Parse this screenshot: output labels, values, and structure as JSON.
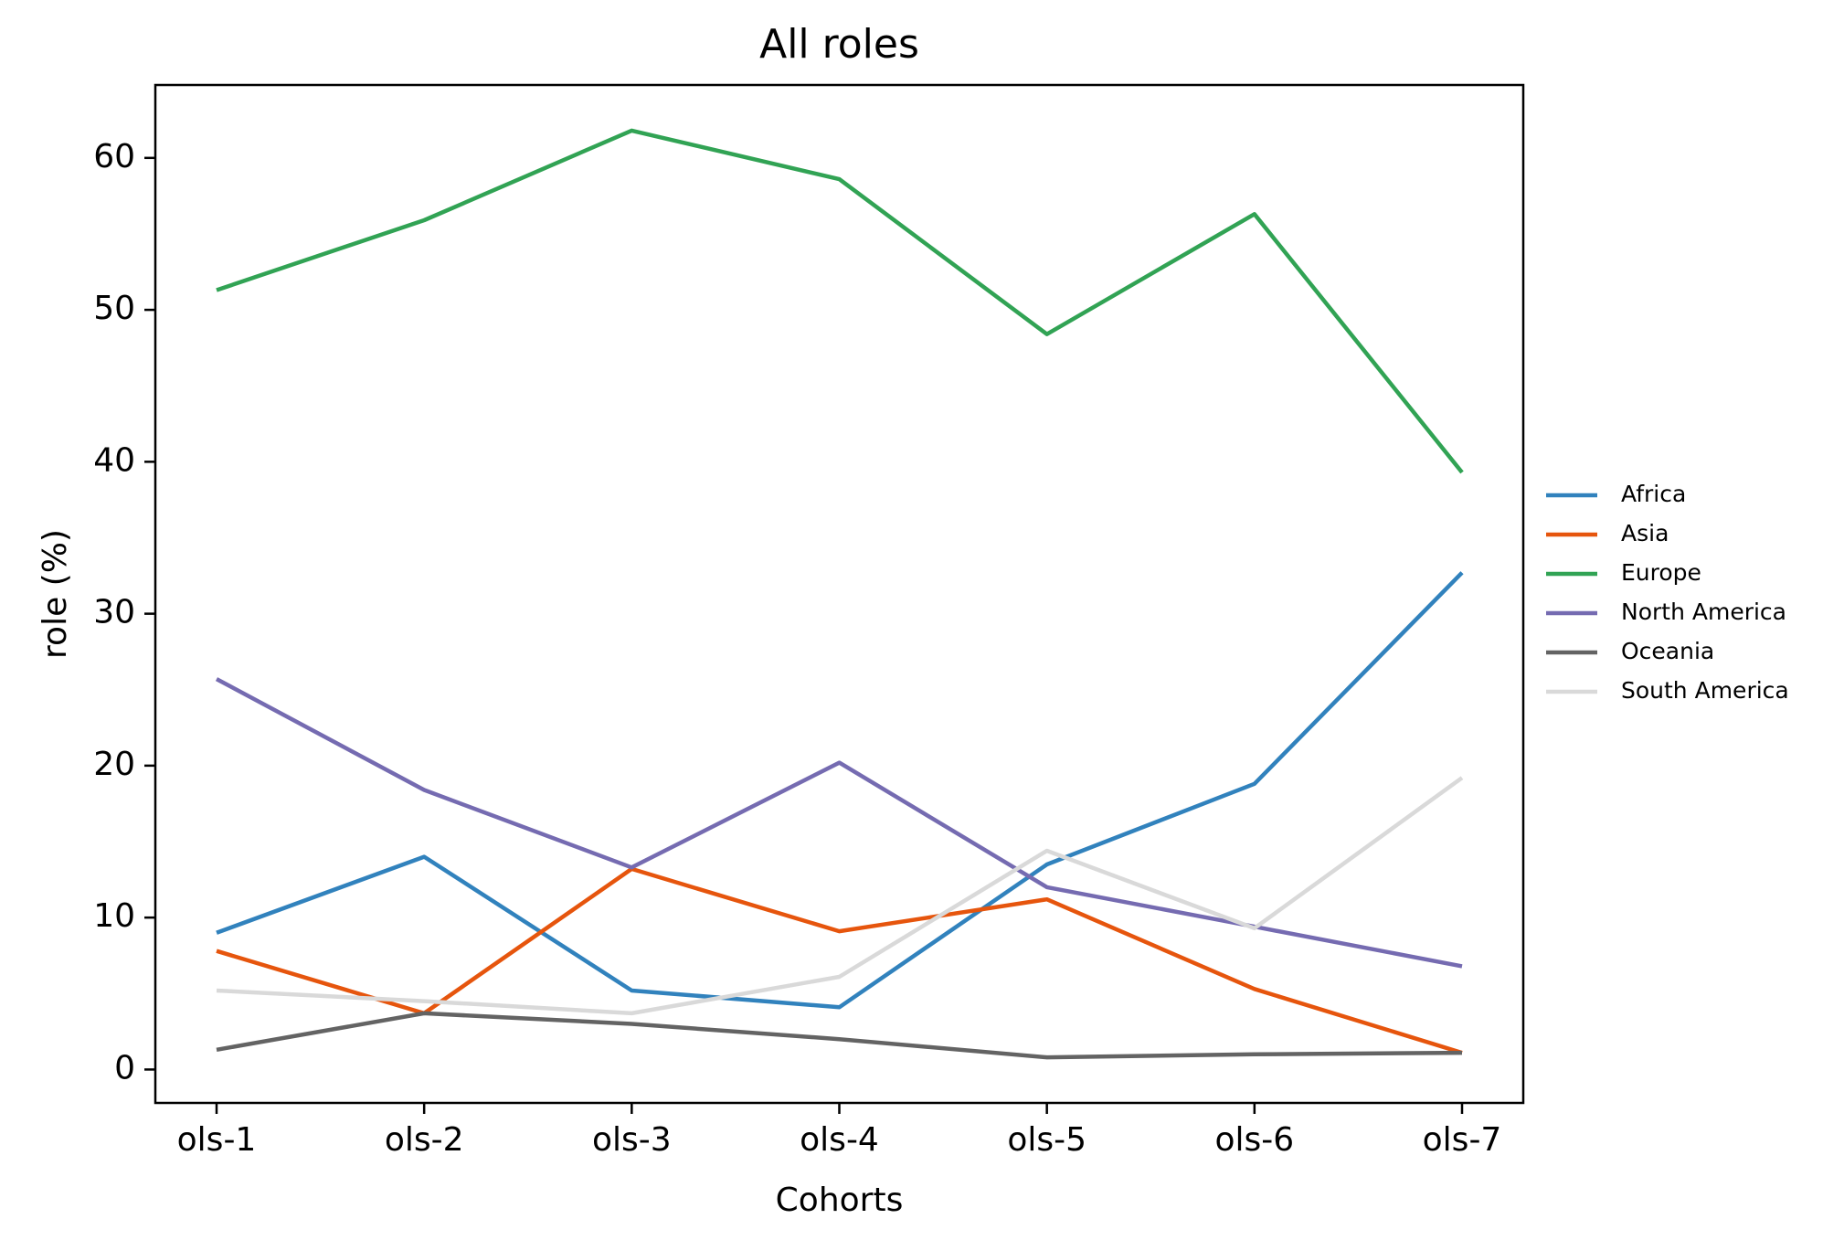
{
  "chart_data": {
    "type": "line",
    "title": "All roles",
    "xlabel": "Cohorts",
    "ylabel": "role (%)",
    "categories": [
      "ols-1",
      "ols-2",
      "ols-3",
      "ols-4",
      "ols-5",
      "ols-6",
      "ols-7"
    ],
    "ylim": [
      -2.2,
      64.8
    ],
    "yticks": [
      0,
      10,
      20,
      30,
      40,
      50,
      60
    ],
    "grid": false,
    "legend_position": "center-right-outside",
    "series": [
      {
        "name": "Africa",
        "color": "#3182bd",
        "values": [
          9.0,
          14.0,
          5.2,
          4.1,
          13.5,
          18.8,
          32.7
        ]
      },
      {
        "name": "Asia",
        "color": "#e6550d",
        "values": [
          7.8,
          3.7,
          13.2,
          9.1,
          11.2,
          5.3,
          1.1
        ]
      },
      {
        "name": "Europe",
        "color": "#31a354",
        "values": [
          51.3,
          55.9,
          61.8,
          58.6,
          48.4,
          56.3,
          39.3
        ]
      },
      {
        "name": "North America",
        "color": "#756bb1",
        "values": [
          25.7,
          18.4,
          13.3,
          20.2,
          12.0,
          9.4,
          6.8
        ]
      },
      {
        "name": "Oceania",
        "color": "#636363",
        "values": [
          1.3,
          3.7,
          3.0,
          2.0,
          0.8,
          1.0,
          1.1
        ]
      },
      {
        "name": "South America",
        "color": "#d9d9d9",
        "values": [
          5.2,
          4.5,
          3.7,
          6.1,
          14.4,
          9.3,
          19.2
        ]
      }
    ]
  }
}
